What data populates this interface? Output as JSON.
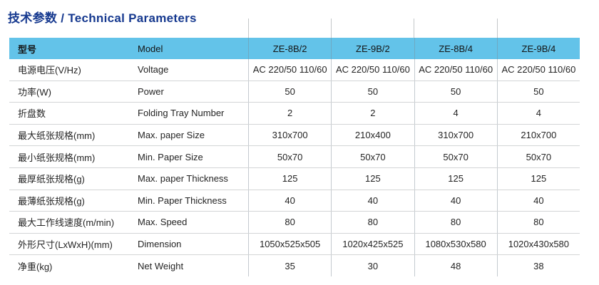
{
  "title": "技术参数 / Technical Parameters",
  "colors": {
    "title_text": "#16398f",
    "header_bg": "#63c3e9",
    "grid_line": "#d3d5d6",
    "body_text": "#242424"
  },
  "table": {
    "header": {
      "cn": "型号",
      "en": "Model",
      "models": [
        "ZE-8B/2",
        "ZE-9B/2",
        "ZE-8B/4",
        "ZE-9B/4"
      ]
    },
    "rows": [
      {
        "cn": "电源电压(V/Hz)",
        "en": "Voltage",
        "values": [
          "AC 220/50 110/60",
          "AC 220/50 110/60",
          "AC 220/50 110/60",
          "AC 220/50 110/60"
        ]
      },
      {
        "cn": "功率(W)",
        "en": "Power",
        "values": [
          "50",
          "50",
          "50",
          "50"
        ]
      },
      {
        "cn": "折盘数",
        "en": "Folding Tray Number",
        "values": [
          "2",
          "2",
          "4",
          "4"
        ]
      },
      {
        "cn": "最大纸张规格(mm)",
        "en": "Max. paper Size",
        "values": [
          "310x700",
          "210x400",
          "310x700",
          "210x700"
        ]
      },
      {
        "cn": "最小纸张规格(mm)",
        "en": "Min. Paper Size",
        "values": [
          "50x70",
          "50x70",
          "50x70",
          "50x70"
        ]
      },
      {
        "cn": "最厚纸张规格(g)",
        "en": "Max. paper Thickness",
        "values": [
          "125",
          "125",
          "125",
          "125"
        ]
      },
      {
        "cn": "最薄纸张规格(g)",
        "en": "Min. Paper Thickness",
        "values": [
          "40",
          "40",
          "40",
          "40"
        ]
      },
      {
        "cn": "最大工作线速度(m/min)",
        "en": "Max. Speed",
        "values": [
          "80",
          "80",
          "80",
          "80"
        ]
      },
      {
        "cn": "外形尺寸(LxWxH)(mm)",
        "en": "Dimension",
        "values": [
          "1050x525x505",
          "1020x425x525",
          "1080x530x580",
          "1020x430x580"
        ]
      },
      {
        "cn": "净重(kg)",
        "en": "Net Weight",
        "values": [
          "35",
          "30",
          "48",
          "38"
        ]
      }
    ]
  }
}
